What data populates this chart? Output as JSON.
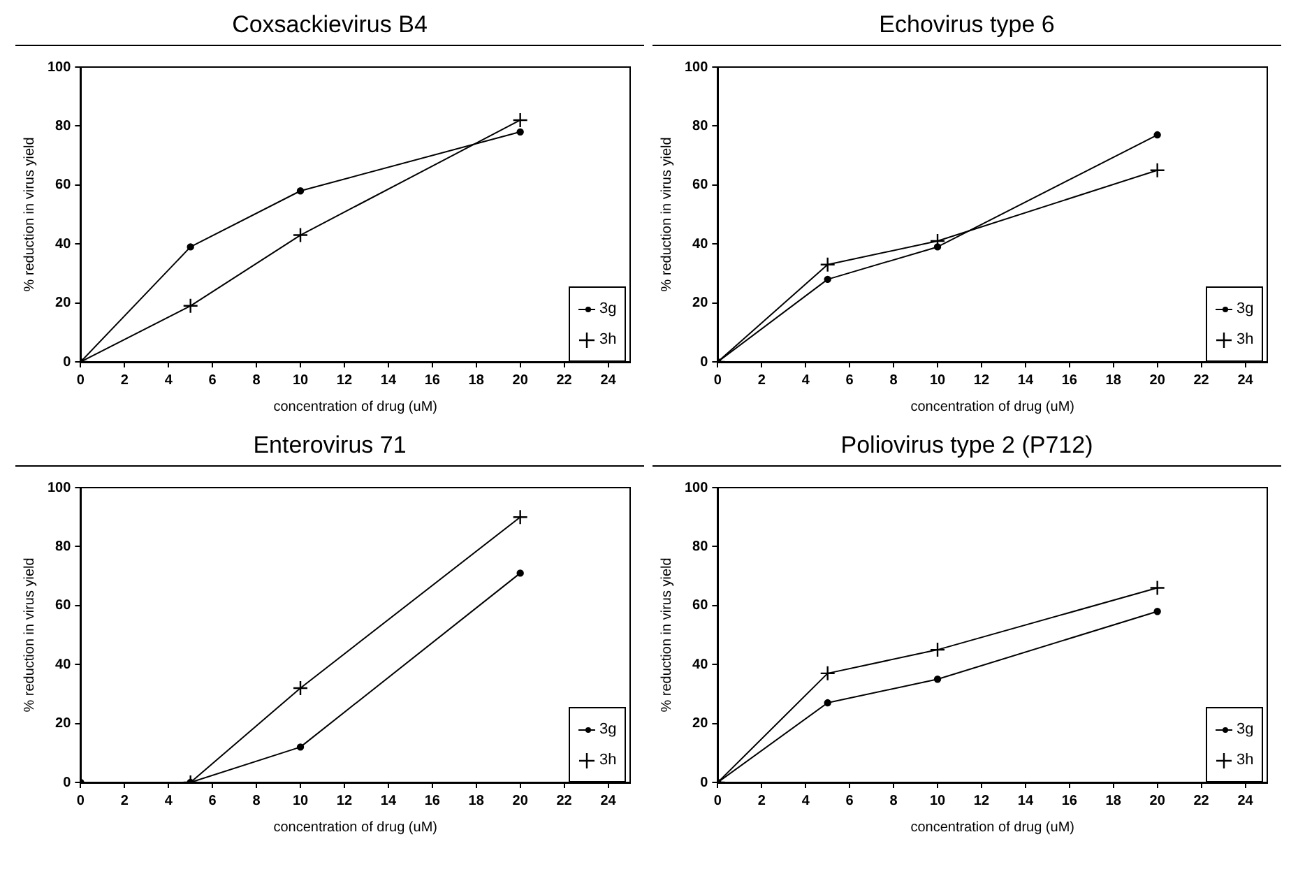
{
  "chart_data": [
    {
      "type": "line",
      "title": "Coxsackievirus B4",
      "xlabel": "concentration of drug (uM)",
      "ylabel": "% reduction in virus yield",
      "xlim": [
        0,
        25
      ],
      "xticks": [
        0,
        2,
        4,
        6,
        8,
        10,
        12,
        14,
        16,
        18,
        20,
        22,
        24
      ],
      "ylim": [
        0,
        100
      ],
      "yticks": [
        0,
        20,
        40,
        60,
        80,
        100
      ],
      "legend": "bottom right",
      "grid": false,
      "series": [
        {
          "name": "3g",
          "color": "#000000",
          "marker": "circle",
          "x": [
            0,
            5,
            10,
            20
          ],
          "values": [
            0,
            39,
            58,
            78
          ]
        },
        {
          "name": "3h",
          "color": "#000000",
          "marker": "cross",
          "x": [
            0,
            5,
            10,
            20
          ],
          "values": [
            0,
            19,
            43,
            82
          ]
        }
      ]
    },
    {
      "type": "line",
      "title": "Echovirus type 6",
      "xlabel": "concentration of drug (uM)",
      "ylabel": "% reduction in virus yield",
      "xlim": [
        0,
        25
      ],
      "xticks": [
        0,
        2,
        4,
        6,
        8,
        10,
        12,
        14,
        16,
        18,
        20,
        22,
        24
      ],
      "ylim": [
        0,
        100
      ],
      "yticks": [
        0,
        20,
        40,
        60,
        80,
        100
      ],
      "legend": "bottom right",
      "grid": false,
      "series": [
        {
          "name": "3g",
          "color": "#000000",
          "marker": "circle",
          "x": [
            0,
            5,
            10,
            20
          ],
          "values": [
            0,
            28,
            39,
            77
          ]
        },
        {
          "name": "3h",
          "color": "#000000",
          "marker": "cross",
          "x": [
            0,
            5,
            10,
            20
          ],
          "values": [
            0,
            33,
            41,
            65
          ]
        }
      ]
    },
    {
      "type": "line",
      "title": "Enterovirus 71",
      "xlabel": "concentration of drug (uM)",
      "ylabel": "% reduction in virus yield",
      "xlim": [
        0,
        25
      ],
      "xticks": [
        0,
        2,
        4,
        6,
        8,
        10,
        12,
        14,
        16,
        18,
        20,
        22,
        24
      ],
      "ylim": [
        0,
        100
      ],
      "yticks": [
        0,
        20,
        40,
        60,
        80,
        100
      ],
      "legend": "bottom right",
      "grid": false,
      "series": [
        {
          "name": "3g",
          "color": "#000000",
          "marker": "circle",
          "x": [
            0,
            5,
            10,
            20
          ],
          "values": [
            0,
            0,
            12,
            71
          ]
        },
        {
          "name": "3h",
          "color": "#000000",
          "marker": "cross",
          "x": [
            5,
            10,
            20
          ],
          "values": [
            0,
            32,
            90
          ]
        }
      ]
    },
    {
      "type": "line",
      "title": "Poliovirus type 2 (P712)",
      "xlabel": "concentration of drug (uM)",
      "ylabel": "% reduction in virus yield",
      "xlim": [
        0,
        25
      ],
      "xticks": [
        0,
        2,
        4,
        6,
        8,
        10,
        12,
        14,
        16,
        18,
        20,
        22,
        24
      ],
      "ylim": [
        0,
        100
      ],
      "yticks": [
        0,
        20,
        40,
        60,
        80,
        100
      ],
      "legend": "bottom right",
      "grid": false,
      "series": [
        {
          "name": "3g",
          "color": "#000000",
          "marker": "circle",
          "x": [
            0,
            5,
            10,
            20
          ],
          "values": [
            0,
            27,
            35,
            58
          ]
        },
        {
          "name": "3h",
          "color": "#000000",
          "marker": "cross",
          "x": [
            0,
            5,
            10,
            20
          ],
          "values": [
            0,
            37,
            45,
            66
          ]
        }
      ]
    }
  ]
}
